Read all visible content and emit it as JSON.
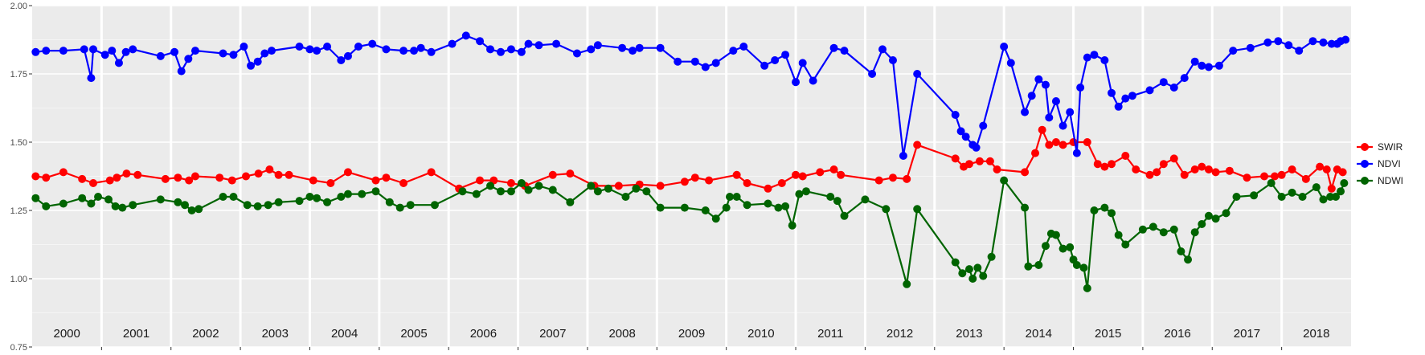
{
  "chart_data": {
    "type": "line",
    "title": "",
    "xlabel": "",
    "ylabel": "",
    "xlim": [
      2000,
      2019
    ],
    "ylim": [
      0.75,
      2.0
    ],
    "grid": true,
    "legend_position": "right",
    "y_ticks": [
      "0.75",
      "1.00",
      "1.25",
      "1.50",
      "1.75",
      "2.00"
    ],
    "year_labels": [
      "2000",
      "2001",
      "2002",
      "2003",
      "2004",
      "2005",
      "2006",
      "2007",
      "2008",
      "2009",
      "2010",
      "2011",
      "2012",
      "2013",
      "2014",
      "2015",
      "2016",
      "2017",
      "2018"
    ],
    "series": [
      {
        "name": "SWIR",
        "color": "#ff0000",
        "x": [
          2000.05,
          2000.2,
          2000.45,
          2000.72,
          2000.88,
          2001.12,
          2001.22,
          2001.36,
          2001.52,
          2001.92,
          2002.1,
          2002.26,
          2002.35,
          2002.7,
          2002.88,
          2003.08,
          2003.26,
          2003.42,
          2003.55,
          2003.7,
          2004.05,
          2004.3,
          2004.55,
          2004.95,
          2005.1,
          2005.35,
          2005.75,
          2006.15,
          2006.45,
          2006.65,
          2006.9,
          2007.1,
          2007.5,
          2007.75,
          2008.1,
          2008.45,
          2008.75,
          2009.05,
          2009.4,
          2009.55,
          2009.75,
          2010.15,
          2010.3,
          2010.6,
          2010.8,
          2011.0,
          2011.1,
          2011.35,
          2011.55,
          2011.65,
          2012.2,
          2012.4,
          2012.6,
          2012.75,
          2013.3,
          2013.42,
          2013.5,
          2013.65,
          2013.8,
          2013.9,
          2014.3,
          2014.45,
          2014.55,
          2014.65,
          2014.75,
          2014.85,
          2015.0,
          2015.2,
          2015.35,
          2015.45,
          2015.55,
          2015.75,
          2015.9,
          2016.1,
          2016.2,
          2016.3,
          2016.45,
          2016.6,
          2016.75,
          2016.85,
          2016.95,
          2017.05,
          2017.25,
          2017.5,
          2017.75,
          2017.9,
          2018.0,
          2018.15,
          2018.35,
          2018.55,
          2018.65,
          2018.72,
          2018.8,
          2018.88
        ],
        "values": [
          1.375,
          1.37,
          1.39,
          1.365,
          1.35,
          1.36,
          1.37,
          1.385,
          1.38,
          1.365,
          1.37,
          1.36,
          1.375,
          1.37,
          1.36,
          1.375,
          1.385,
          1.4,
          1.38,
          1.38,
          1.36,
          1.35,
          1.39,
          1.36,
          1.37,
          1.35,
          1.39,
          1.33,
          1.36,
          1.36,
          1.35,
          1.34,
          1.38,
          1.385,
          1.34,
          1.34,
          1.345,
          1.34,
          1.355,
          1.37,
          1.36,
          1.38,
          1.35,
          1.33,
          1.35,
          1.38,
          1.375,
          1.39,
          1.4,
          1.38,
          1.36,
          1.37,
          1.365,
          1.49,
          1.44,
          1.41,
          1.42,
          1.43,
          1.43,
          1.4,
          1.39,
          1.46,
          1.545,
          1.49,
          1.5,
          1.49,
          1.5,
          1.5,
          1.42,
          1.41,
          1.42,
          1.45,
          1.4,
          1.38,
          1.39,
          1.42,
          1.44,
          1.38,
          1.4,
          1.41,
          1.4,
          1.39,
          1.395,
          1.37,
          1.375,
          1.375,
          1.38,
          1.4,
          1.365,
          1.41,
          1.4,
          1.33,
          1.4,
          1.39
        ]
      },
      {
        "name": "NDVI",
        "color": "#0000ff",
        "x": [
          2000.05,
          2000.2,
          2000.45,
          2000.75,
          2000.85,
          2000.88,
          2001.05,
          2001.15,
          2001.25,
          2001.35,
          2001.45,
          2001.85,
          2002.05,
          2002.15,
          2002.25,
          2002.35,
          2002.75,
          2002.9,
          2003.05,
          2003.15,
          2003.25,
          2003.35,
          2003.45,
          2003.85,
          2004.0,
          2004.1,
          2004.25,
          2004.45,
          2004.55,
          2004.7,
          2004.9,
          2005.1,
          2005.35,
          2005.5,
          2005.6,
          2005.75,
          2006.05,
          2006.25,
          2006.45,
          2006.6,
          2006.75,
          2006.9,
          2007.05,
          2007.15,
          2007.3,
          2007.55,
          2007.85,
          2008.05,
          2008.15,
          2008.5,
          2008.65,
          2008.75,
          2009.05,
          2009.3,
          2009.55,
          2009.7,
          2009.85,
          2010.1,
          2010.25,
          2010.55,
          2010.7,
          2010.85,
          2011.0,
          2011.1,
          2011.25,
          2011.55,
          2011.7,
          2012.1,
          2012.25,
          2012.4,
          2012.55,
          2012.75,
          2013.3,
          2013.38,
          2013.45,
          2013.55,
          2013.6,
          2013.7,
          2014.0,
          2014.1,
          2014.3,
          2014.4,
          2014.5,
          2014.6,
          2014.65,
          2014.75,
          2014.85,
          2014.95,
          2015.05,
          2015.1,
          2015.2,
          2015.3,
          2015.45,
          2015.55,
          2015.65,
          2015.75,
          2015.85,
          2016.1,
          2016.3,
          2016.45,
          2016.6,
          2016.75,
          2016.85,
          2016.95,
          2017.1,
          2017.3,
          2017.55,
          2017.8,
          2017.95,
          2018.1,
          2018.25,
          2018.45,
          2018.6,
          2018.72,
          2018.8,
          2018.85,
          2018.92
        ],
        "values": [
          1.83,
          1.835,
          1.835,
          1.84,
          1.735,
          1.84,
          1.82,
          1.835,
          1.79,
          1.83,
          1.84,
          1.815,
          1.83,
          1.76,
          1.805,
          1.835,
          1.825,
          1.82,
          1.85,
          1.78,
          1.795,
          1.825,
          1.835,
          1.85,
          1.84,
          1.835,
          1.85,
          1.8,
          1.815,
          1.85,
          1.86,
          1.84,
          1.835,
          1.835,
          1.845,
          1.83,
          1.86,
          1.89,
          1.87,
          1.84,
          1.83,
          1.84,
          1.83,
          1.86,
          1.855,
          1.86,
          1.825,
          1.84,
          1.855,
          1.845,
          1.835,
          1.845,
          1.845,
          1.795,
          1.795,
          1.775,
          1.79,
          1.835,
          1.85,
          1.78,
          1.8,
          1.82,
          1.72,
          1.79,
          1.725,
          1.845,
          1.835,
          1.75,
          1.84,
          1.8,
          1.45,
          1.75,
          1.6,
          1.54,
          1.52,
          1.49,
          1.48,
          1.56,
          1.85,
          1.79,
          1.61,
          1.67,
          1.73,
          1.71,
          1.59,
          1.65,
          1.56,
          1.61,
          1.46,
          1.7,
          1.81,
          1.82,
          1.8,
          1.68,
          1.63,
          1.66,
          1.67,
          1.69,
          1.72,
          1.7,
          1.735,
          1.795,
          1.78,
          1.775,
          1.78,
          1.835,
          1.845,
          1.865,
          1.87,
          1.855,
          1.835,
          1.87,
          1.865,
          1.86,
          1.86,
          1.87,
          1.875
        ]
      },
      {
        "name": "NDWI",
        "color": "#006400",
        "x": [
          2000.05,
          2000.2,
          2000.45,
          2000.72,
          2000.85,
          2000.95,
          2001.1,
          2001.2,
          2001.3,
          2001.45,
          2001.85,
          2002.1,
          2002.2,
          2002.3,
          2002.4,
          2002.75,
          2002.9,
          2003.1,
          2003.25,
          2003.4,
          2003.55,
          2003.85,
          2004.0,
          2004.1,
          2004.25,
          2004.45,
          2004.55,
          2004.75,
          2004.95,
          2005.15,
          2005.3,
          2005.45,
          2005.8,
          2006.2,
          2006.4,
          2006.6,
          2006.75,
          2006.9,
          2007.05,
          2007.15,
          2007.3,
          2007.5,
          2007.75,
          2008.05,
          2008.15,
          2008.3,
          2008.55,
          2008.7,
          2008.85,
          2009.05,
          2009.4,
          2009.7,
          2009.85,
          2010.0,
          2010.05,
          2010.15,
          2010.3,
          2010.6,
          2010.75,
          2010.85,
          2010.95,
          2011.05,
          2011.15,
          2011.5,
          2011.6,
          2011.7,
          2012.0,
          2012.3,
          2012.6,
          2012.75,
          2013.3,
          2013.4,
          2013.5,
          2013.55,
          2013.62,
          2013.7,
          2013.82,
          2014.0,
          2014.3,
          2014.35,
          2014.5,
          2014.6,
          2014.68,
          2014.75,
          2014.85,
          2014.95,
          2015.0,
          2015.05,
          2015.15,
          2015.2,
          2015.3,
          2015.45,
          2015.55,
          2015.65,
          2015.75,
          2016.0,
          2016.15,
          2016.3,
          2016.45,
          2016.55,
          2016.65,
          2016.75,
          2016.85,
          2016.95,
          2017.05,
          2017.2,
          2017.35,
          2017.6,
          2017.85,
          2018.0,
          2018.15,
          2018.3,
          2018.5,
          2018.6,
          2018.7,
          2018.78,
          2018.85,
          2018.9
        ],
        "values": [
          1.295,
          1.265,
          1.275,
          1.295,
          1.275,
          1.3,
          1.29,
          1.265,
          1.26,
          1.27,
          1.29,
          1.28,
          1.27,
          1.25,
          1.255,
          1.3,
          1.3,
          1.27,
          1.265,
          1.27,
          1.28,
          1.285,
          1.3,
          1.295,
          1.28,
          1.3,
          1.31,
          1.31,
          1.32,
          1.28,
          1.26,
          1.27,
          1.27,
          1.32,
          1.31,
          1.34,
          1.32,
          1.32,
          1.35,
          1.325,
          1.34,
          1.325,
          1.28,
          1.34,
          1.32,
          1.33,
          1.3,
          1.33,
          1.32,
          1.26,
          1.26,
          1.25,
          1.22,
          1.26,
          1.3,
          1.3,
          1.27,
          1.275,
          1.26,
          1.265,
          1.195,
          1.31,
          1.32,
          1.3,
          1.285,
          1.23,
          1.29,
          1.255,
          0.98,
          1.255,
          1.06,
          1.02,
          1.035,
          1.0,
          1.04,
          1.01,
          1.08,
          1.36,
          1.26,
          1.045,
          1.05,
          1.12,
          1.165,
          1.16,
          1.11,
          1.115,
          1.07,
          1.05,
          1.04,
          0.965,
          1.25,
          1.26,
          1.24,
          1.16,
          1.125,
          1.18,
          1.19,
          1.17,
          1.18,
          1.1,
          1.07,
          1.17,
          1.2,
          1.23,
          1.22,
          1.24,
          1.3,
          1.305,
          1.35,
          1.3,
          1.315,
          1.3,
          1.335,
          1.29,
          1.3,
          1.3,
          1.32,
          1.35
        ]
      }
    ]
  }
}
